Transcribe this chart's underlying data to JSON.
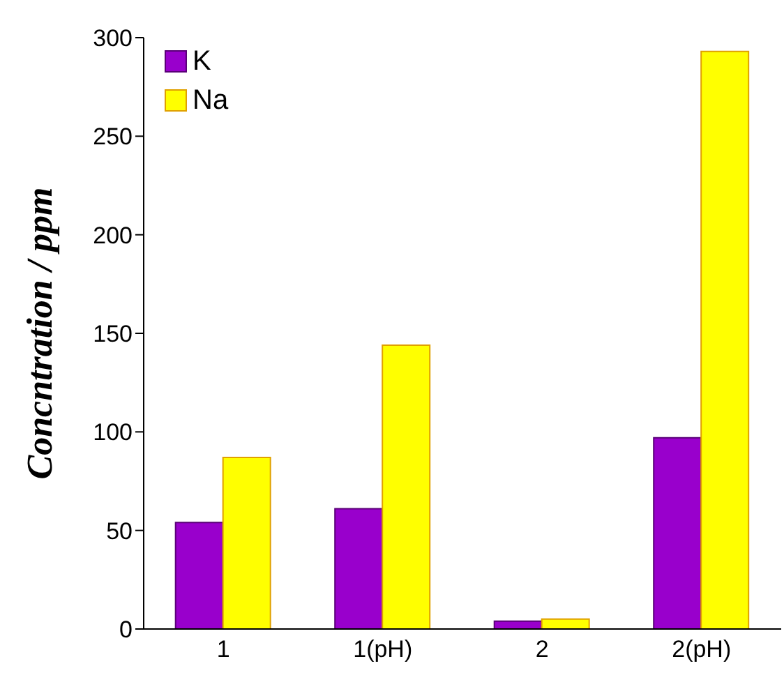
{
  "chart_data": {
    "type": "bar",
    "ylabel": "Concntration / ppm",
    "categories": [
      "1",
      "1(pH)",
      "2",
      "2(pH)"
    ],
    "series": [
      {
        "name": "K",
        "color": "#9900cc",
        "values": [
          54,
          61,
          4,
          97
        ]
      },
      {
        "name": "Na",
        "color": "#ffff00",
        "values": [
          87,
          144,
          5,
          293
        ]
      }
    ],
    "ylim": [
      0,
      300
    ],
    "yticks": [
      0,
      50,
      100,
      150,
      200,
      250,
      300
    ],
    "grid": false,
    "legend": "top left"
  }
}
